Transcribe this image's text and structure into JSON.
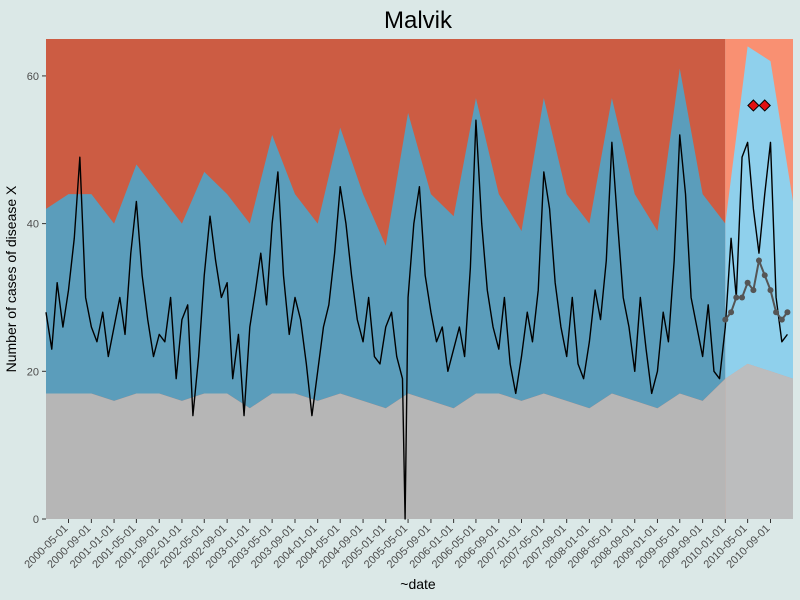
{
  "chart_data": {
    "type": "area",
    "title": "Malvik",
    "xlabel": "~date",
    "ylabel": "Number of cases of disease X",
    "x_range": [
      "2000-01-01",
      "2010-12-31"
    ],
    "ylim": [
      0,
      65
    ],
    "y_ticks": [
      0,
      20,
      40,
      60
    ],
    "x_ticks": [
      "2000-05-01",
      "2000-09-01",
      "2001-01-01",
      "2001-05-01",
      "2001-09-01",
      "2002-01-01",
      "2002-05-01",
      "2002-09-01",
      "2003-01-01",
      "2003-05-01",
      "2003-09-01",
      "2004-01-01",
      "2004-05-01",
      "2004-09-01",
      "2005-01-01",
      "2005-05-01",
      "2005-09-01",
      "2006-01-01",
      "2006-05-01",
      "2006-09-01",
      "2007-01-01",
      "2007-05-01",
      "2007-09-01",
      "2008-01-01",
      "2008-05-01",
      "2008-09-01",
      "2009-01-01",
      "2009-05-01",
      "2009-09-01",
      "2010-01-01",
      "2010-05-01",
      "2010-09-01"
    ],
    "training_period": {
      "start": "2000-01-01",
      "end": "2010-01-01"
    },
    "production_period": {
      "start": "2010-01-01",
      "end": "2010-12-31"
    },
    "baseline_thresholds": {
      "x": [
        "2000-01-01",
        "2000-05-01",
        "2000-09-01",
        "2001-01-01",
        "2001-05-01",
        "2001-09-01",
        "2002-01-01",
        "2002-05-01",
        "2002-09-01",
        "2003-01-01",
        "2003-05-01",
        "2003-09-01",
        "2004-01-01",
        "2004-05-01",
        "2004-09-01",
        "2005-01-01",
        "2005-05-01",
        "2005-09-01",
        "2006-01-01",
        "2006-05-01",
        "2006-09-01",
        "2007-01-01",
        "2007-05-01",
        "2007-09-01",
        "2008-01-01",
        "2008-05-01",
        "2008-09-01",
        "2009-01-01",
        "2009-05-01",
        "2009-09-01",
        "2010-01-01",
        "2010-05-01",
        "2010-09-01",
        "2010-12-31"
      ],
      "lower": [
        17,
        17,
        17,
        16,
        17,
        17,
        16,
        17,
        17,
        15,
        17,
        17,
        16,
        17,
        16,
        15,
        17,
        16,
        15,
        17,
        17,
        16,
        17,
        16,
        15,
        17,
        16,
        15,
        17,
        16,
        19,
        21,
        20,
        19
      ],
      "upper": [
        42,
        44,
        44,
        40,
        48,
        44,
        40,
        47,
        44,
        40,
        52,
        44,
        40,
        53,
        44,
        37,
        55,
        44,
        41,
        57,
        44,
        39,
        57,
        44,
        40,
        57,
        44,
        39,
        61,
        44,
        40,
        64,
        62,
        43
      ]
    },
    "observed": {
      "x": [
        "2000-01-01",
        "2000-02-01",
        "2000-03-01",
        "2000-04-01",
        "2000-05-01",
        "2000-06-01",
        "2000-07-01",
        "2000-08-01",
        "2000-09-01",
        "2000-10-01",
        "2000-11-01",
        "2000-12-01",
        "2001-01-01",
        "2001-02-01",
        "2001-03-01",
        "2001-04-01",
        "2001-05-01",
        "2001-06-01",
        "2001-07-01",
        "2001-08-01",
        "2001-09-01",
        "2001-10-01",
        "2001-11-01",
        "2001-12-01",
        "2002-01-01",
        "2002-02-01",
        "2002-03-01",
        "2002-04-01",
        "2002-05-01",
        "2002-06-01",
        "2002-07-01",
        "2002-08-01",
        "2002-09-01",
        "2002-10-01",
        "2002-11-01",
        "2002-12-01",
        "2003-01-01",
        "2003-02-01",
        "2003-03-01",
        "2003-04-01",
        "2003-05-01",
        "2003-06-01",
        "2003-07-01",
        "2003-08-01",
        "2003-09-01",
        "2003-10-01",
        "2003-11-01",
        "2003-12-01",
        "2004-01-01",
        "2004-02-01",
        "2004-03-01",
        "2004-04-01",
        "2004-05-01",
        "2004-06-01",
        "2004-07-01",
        "2004-08-01",
        "2004-09-01",
        "2004-10-01",
        "2004-11-01",
        "2004-12-01",
        "2005-01-01",
        "2005-02-01",
        "2005-03-01",
        "2005-04-01",
        "2005-04-15",
        "2005-05-01",
        "2005-06-01",
        "2005-07-01",
        "2005-08-01",
        "2005-09-01",
        "2005-10-01",
        "2005-11-01",
        "2005-12-01",
        "2006-01-01",
        "2006-02-01",
        "2006-03-01",
        "2006-04-01",
        "2006-05-01",
        "2006-06-01",
        "2006-07-01",
        "2006-08-01",
        "2006-09-01",
        "2006-10-01",
        "2006-11-01",
        "2006-12-01",
        "2007-01-01",
        "2007-02-01",
        "2007-03-01",
        "2007-04-01",
        "2007-05-01",
        "2007-06-01",
        "2007-07-01",
        "2007-08-01",
        "2007-09-01",
        "2007-10-01",
        "2007-11-01",
        "2007-12-01",
        "2008-01-01",
        "2008-02-01",
        "2008-03-01",
        "2008-04-01",
        "2008-05-01",
        "2008-06-01",
        "2008-07-01",
        "2008-08-01",
        "2008-09-01",
        "2008-10-01",
        "2008-11-01",
        "2008-12-01",
        "2009-01-01",
        "2009-02-01",
        "2009-03-01",
        "2009-04-01",
        "2009-05-01",
        "2009-06-01",
        "2009-07-01",
        "2009-08-01",
        "2009-09-01",
        "2009-10-01",
        "2009-11-01",
        "2009-12-01",
        "2010-01-01",
        "2010-02-01",
        "2010-03-01",
        "2010-04-01",
        "2010-05-01",
        "2010-06-01",
        "2010-07-01",
        "2010-08-01",
        "2010-09-01",
        "2010-10-01",
        "2010-11-01",
        "2010-12-01"
      ],
      "y": [
        28,
        23,
        32,
        26,
        31,
        38,
        49,
        30,
        26,
        24,
        28,
        22,
        26,
        30,
        25,
        36,
        43,
        33,
        27,
        22,
        25,
        24,
        30,
        19,
        27,
        29,
        14,
        22,
        33,
        41,
        35,
        30,
        32,
        19,
        25,
        14,
        26,
        31,
        36,
        29,
        40,
        47,
        33,
        25,
        30,
        27,
        21,
        14,
        20,
        26,
        29,
        36,
        45,
        40,
        33,
        27,
        24,
        30,
        22,
        21,
        26,
        28,
        22,
        19,
        0,
        30,
        40,
        45,
        33,
        28,
        24,
        26,
        20,
        23,
        26,
        22,
        34,
        54,
        40,
        31,
        26,
        23,
        30,
        21,
        17,
        22,
        28,
        24,
        31,
        47,
        42,
        32,
        26,
        22,
        30,
        21,
        19,
        24,
        31,
        27,
        35,
        51,
        40,
        30,
        26,
        20,
        30,
        23,
        17,
        20,
        28,
        24,
        35,
        52,
        44,
        30,
        26,
        22,
        29,
        20,
        19,
        26,
        38,
        30,
        49,
        51,
        42,
        36,
        44,
        51,
        30,
        24,
        25
      ]
    },
    "expected": {
      "x": [
        "2010-01-01",
        "2010-02-01",
        "2010-03-01",
        "2010-04-01",
        "2010-05-01",
        "2010-06-01",
        "2010-07-01",
        "2010-08-01",
        "2010-09-01",
        "2010-10-01",
        "2010-11-01",
        "2010-12-01"
      ],
      "y": [
        27,
        28,
        30,
        30,
        32,
        31,
        35,
        33,
        31,
        28,
        27,
        28
      ]
    },
    "alerts": {
      "x": [
        "2010-06-01",
        "2010-08-01"
      ],
      "y": [
        56,
        56
      ]
    },
    "colors": {
      "background": "#dbe8e7",
      "high_zone": "#cc5c43",
      "high_zone_production": "#f99072",
      "normal_band": "#5b9dbb",
      "normal_band_production": "#8fd0ec",
      "low_zone": "#b6b6b6",
      "low_zone_production": "#bcbdbe",
      "observed_line": "#000000",
      "expected_points": "#555555",
      "alert_marker": "#e21010"
    }
  }
}
